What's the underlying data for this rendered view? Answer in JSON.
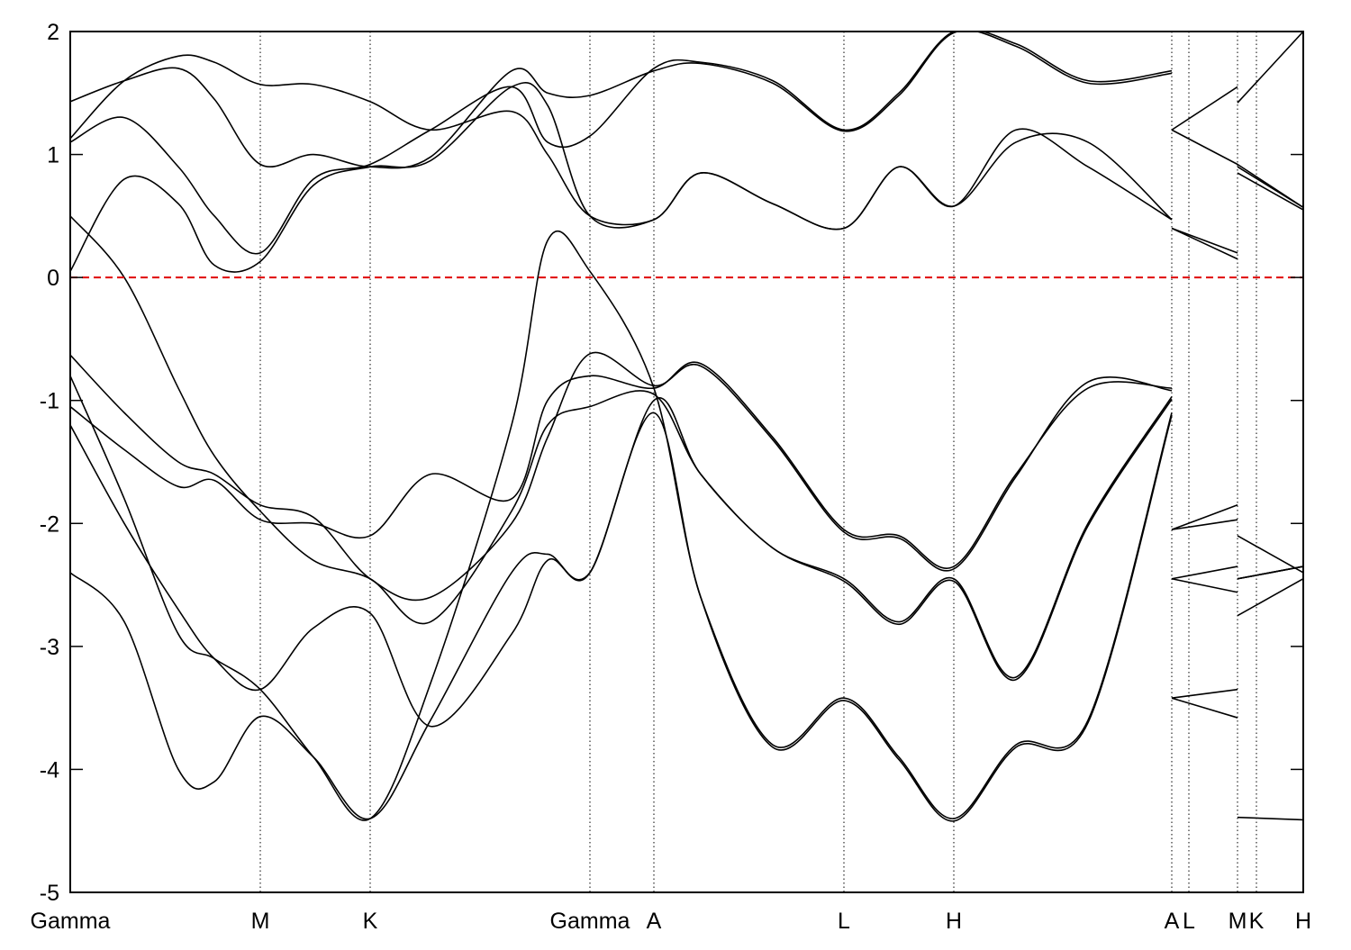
{
  "chart_data": {
    "type": "line",
    "x": [
      0,
      0.6,
      1.2,
      1.6,
      2.11,
      2.7,
      3.33,
      4.0,
      4.9,
      5.3,
      5.77,
      6.48,
      7.0,
      7.8,
      8.59,
      9.2,
      9.81,
      10.5,
      11.3,
      12.23,
      12.23,
      12.23,
      12.96,
      12.96,
      12.96,
      13.69
    ],
    "series": [
      {
        "color": "#000000",
        "values": [
          -2.4,
          -2.8,
          -4.0,
          -4.1,
          -3.57,
          -3.9,
          -4.4,
          -3.6,
          -2.4,
          -2.25,
          -2.4,
          -1.1,
          -2.6,
          -3.8,
          -3.42,
          -3.9,
          -4.4,
          -3.8,
          -3.6,
          -1.1,
          null,
          -3.42,
          -3.58,
          null,
          -4.39,
          -4.41
        ]
      },
      {
        "color": "#000000",
        "values": [
          -1.2,
          -2.0,
          -2.7,
          -3.1,
          -3.35,
          -2.85,
          -2.73,
          -3.65,
          -2.9,
          -2.3,
          -2.4,
          -1.0,
          -1.6,
          -2.2,
          -2.45,
          -2.8,
          -2.45,
          -3.25,
          -2.0,
          -0.97,
          null,
          -2.45,
          -2.56,
          null,
          -2.75,
          -2.45
        ]
      },
      {
        "color": "#000000",
        "values": [
          -1.05,
          -1.4,
          -1.7,
          -1.65,
          -1.97,
          -2.0,
          -2.1,
          -1.6,
          -1.8,
          -1.0,
          -0.8,
          -0.9,
          -0.7,
          -1.3,
          -2.05,
          -2.1,
          -2.35,
          -1.6,
          -0.9,
          -0.9,
          null,
          -2.05,
          -1.85,
          null,
          -2.1,
          -2.4
        ]
      },
      {
        "color": "#000000",
        "values": [
          -0.63,
          -1.1,
          -1.5,
          -1.6,
          -1.85,
          -1.95,
          -2.45,
          -2.6,
          -2.0,
          -1.3,
          -0.62,
          -0.88,
          -0.72,
          -1.32,
          -2.07,
          -2.12,
          -2.37,
          -1.62,
          -0.85,
          -0.92,
          null,
          -2.05,
          -1.97,
          null,
          -2.45,
          -2.35
        ]
      },
      {
        "color": "#000000",
        "values": [
          0.5,
          0.0,
          -0.9,
          -1.45,
          -1.9,
          -2.3,
          -2.45,
          -2.8,
          -1.9,
          -1.2,
          -1.05,
          -0.95,
          -1.6,
          -2.2,
          -2.47,
          -2.82,
          -2.47,
          -3.27,
          -2.02,
          -0.99,
          null,
          -2.45,
          -2.35,
          null,
          -2.45,
          -2.35
        ]
      },
      {
        "color": "#000000",
        "values": [
          0.05,
          0.8,
          0.6,
          0.1,
          0.13,
          0.75,
          0.9,
          0.95,
          1.55,
          1.4,
          0.5,
          0.47,
          0.85,
          0.6,
          0.4,
          0.9,
          0.58,
          1.2,
          0.9,
          0.47,
          null,
          0.4,
          0.15,
          null,
          0.9,
          0.57
        ]
      },
      {
        "color": "#000000",
        "values": [
          -0.8,
          -1.8,
          -2.9,
          -3.1,
          -3.35,
          -3.9,
          -4.4,
          -3.3,
          -1.2,
          0.3,
          0.05,
          -0.9,
          -2.6,
          -3.82,
          -3.44,
          -3.92,
          -4.42,
          -3.82,
          -3.62,
          -1.12,
          null,
          -3.42,
          -3.35,
          null,
          -2.45,
          -2.35
        ]
      },
      {
        "color": "#000000",
        "values": [
          1.1,
          1.3,
          0.9,
          0.5,
          0.2,
          0.8,
          0.92,
          1.2,
          1.55,
          1.1,
          1.15,
          1.7,
          1.75,
          1.6,
          1.2,
          1.5,
          2.0,
          1.9,
          1.6,
          1.68,
          null,
          1.2,
          1.55,
          null,
          1.42,
          2.0
        ]
      },
      {
        "color": "#000000",
        "values": [
          1.43,
          1.6,
          1.7,
          1.45,
          0.92,
          1.0,
          0.9,
          0.98,
          1.68,
          1.5,
          1.48,
          1.68,
          1.74,
          1.58,
          1.19,
          1.48,
          1.99,
          1.88,
          1.58,
          1.66,
          null,
          1.2,
          0.92,
          null,
          0.92,
          0.57
        ]
      },
      {
        "color": "#000000",
        "values": [
          1.13,
          1.6,
          1.8,
          1.75,
          1.57,
          1.57,
          1.43,
          1.2,
          1.35,
          1.0,
          0.5,
          0.47,
          0.85,
          0.6,
          0.4,
          0.9,
          0.58,
          1.1,
          1.1,
          0.47,
          null,
          0.4,
          0.2,
          null,
          0.85,
          0.55
        ]
      }
    ],
    "xlim": [
      0,
      13.69
    ],
    "xticks": [
      {
        "value": 0,
        "label": "Gamma"
      },
      {
        "value": 2.11,
        "label": "M"
      },
      {
        "value": 3.33,
        "label": "K"
      },
      {
        "value": 5.77,
        "label": "Gamma"
      },
      {
        "value": 6.48,
        "label": "A"
      },
      {
        "value": 8.59,
        "label": "L"
      },
      {
        "value": 9.81,
        "label": "H"
      },
      {
        "value": 12.23,
        "label": "A"
      },
      {
        "value": 12.42,
        "label": "L"
      },
      {
        "value": 12.96,
        "label": "M"
      },
      {
        "value": 13.17,
        "label": "K"
      },
      {
        "value": 13.69,
        "label": "H"
      }
    ],
    "ylim": [
      -5,
      2
    ],
    "yticks": [
      -5,
      -4,
      -3,
      -2,
      -1,
      0,
      1,
      2
    ],
    "hline": {
      "value": 0,
      "color": "#e00000"
    }
  }
}
